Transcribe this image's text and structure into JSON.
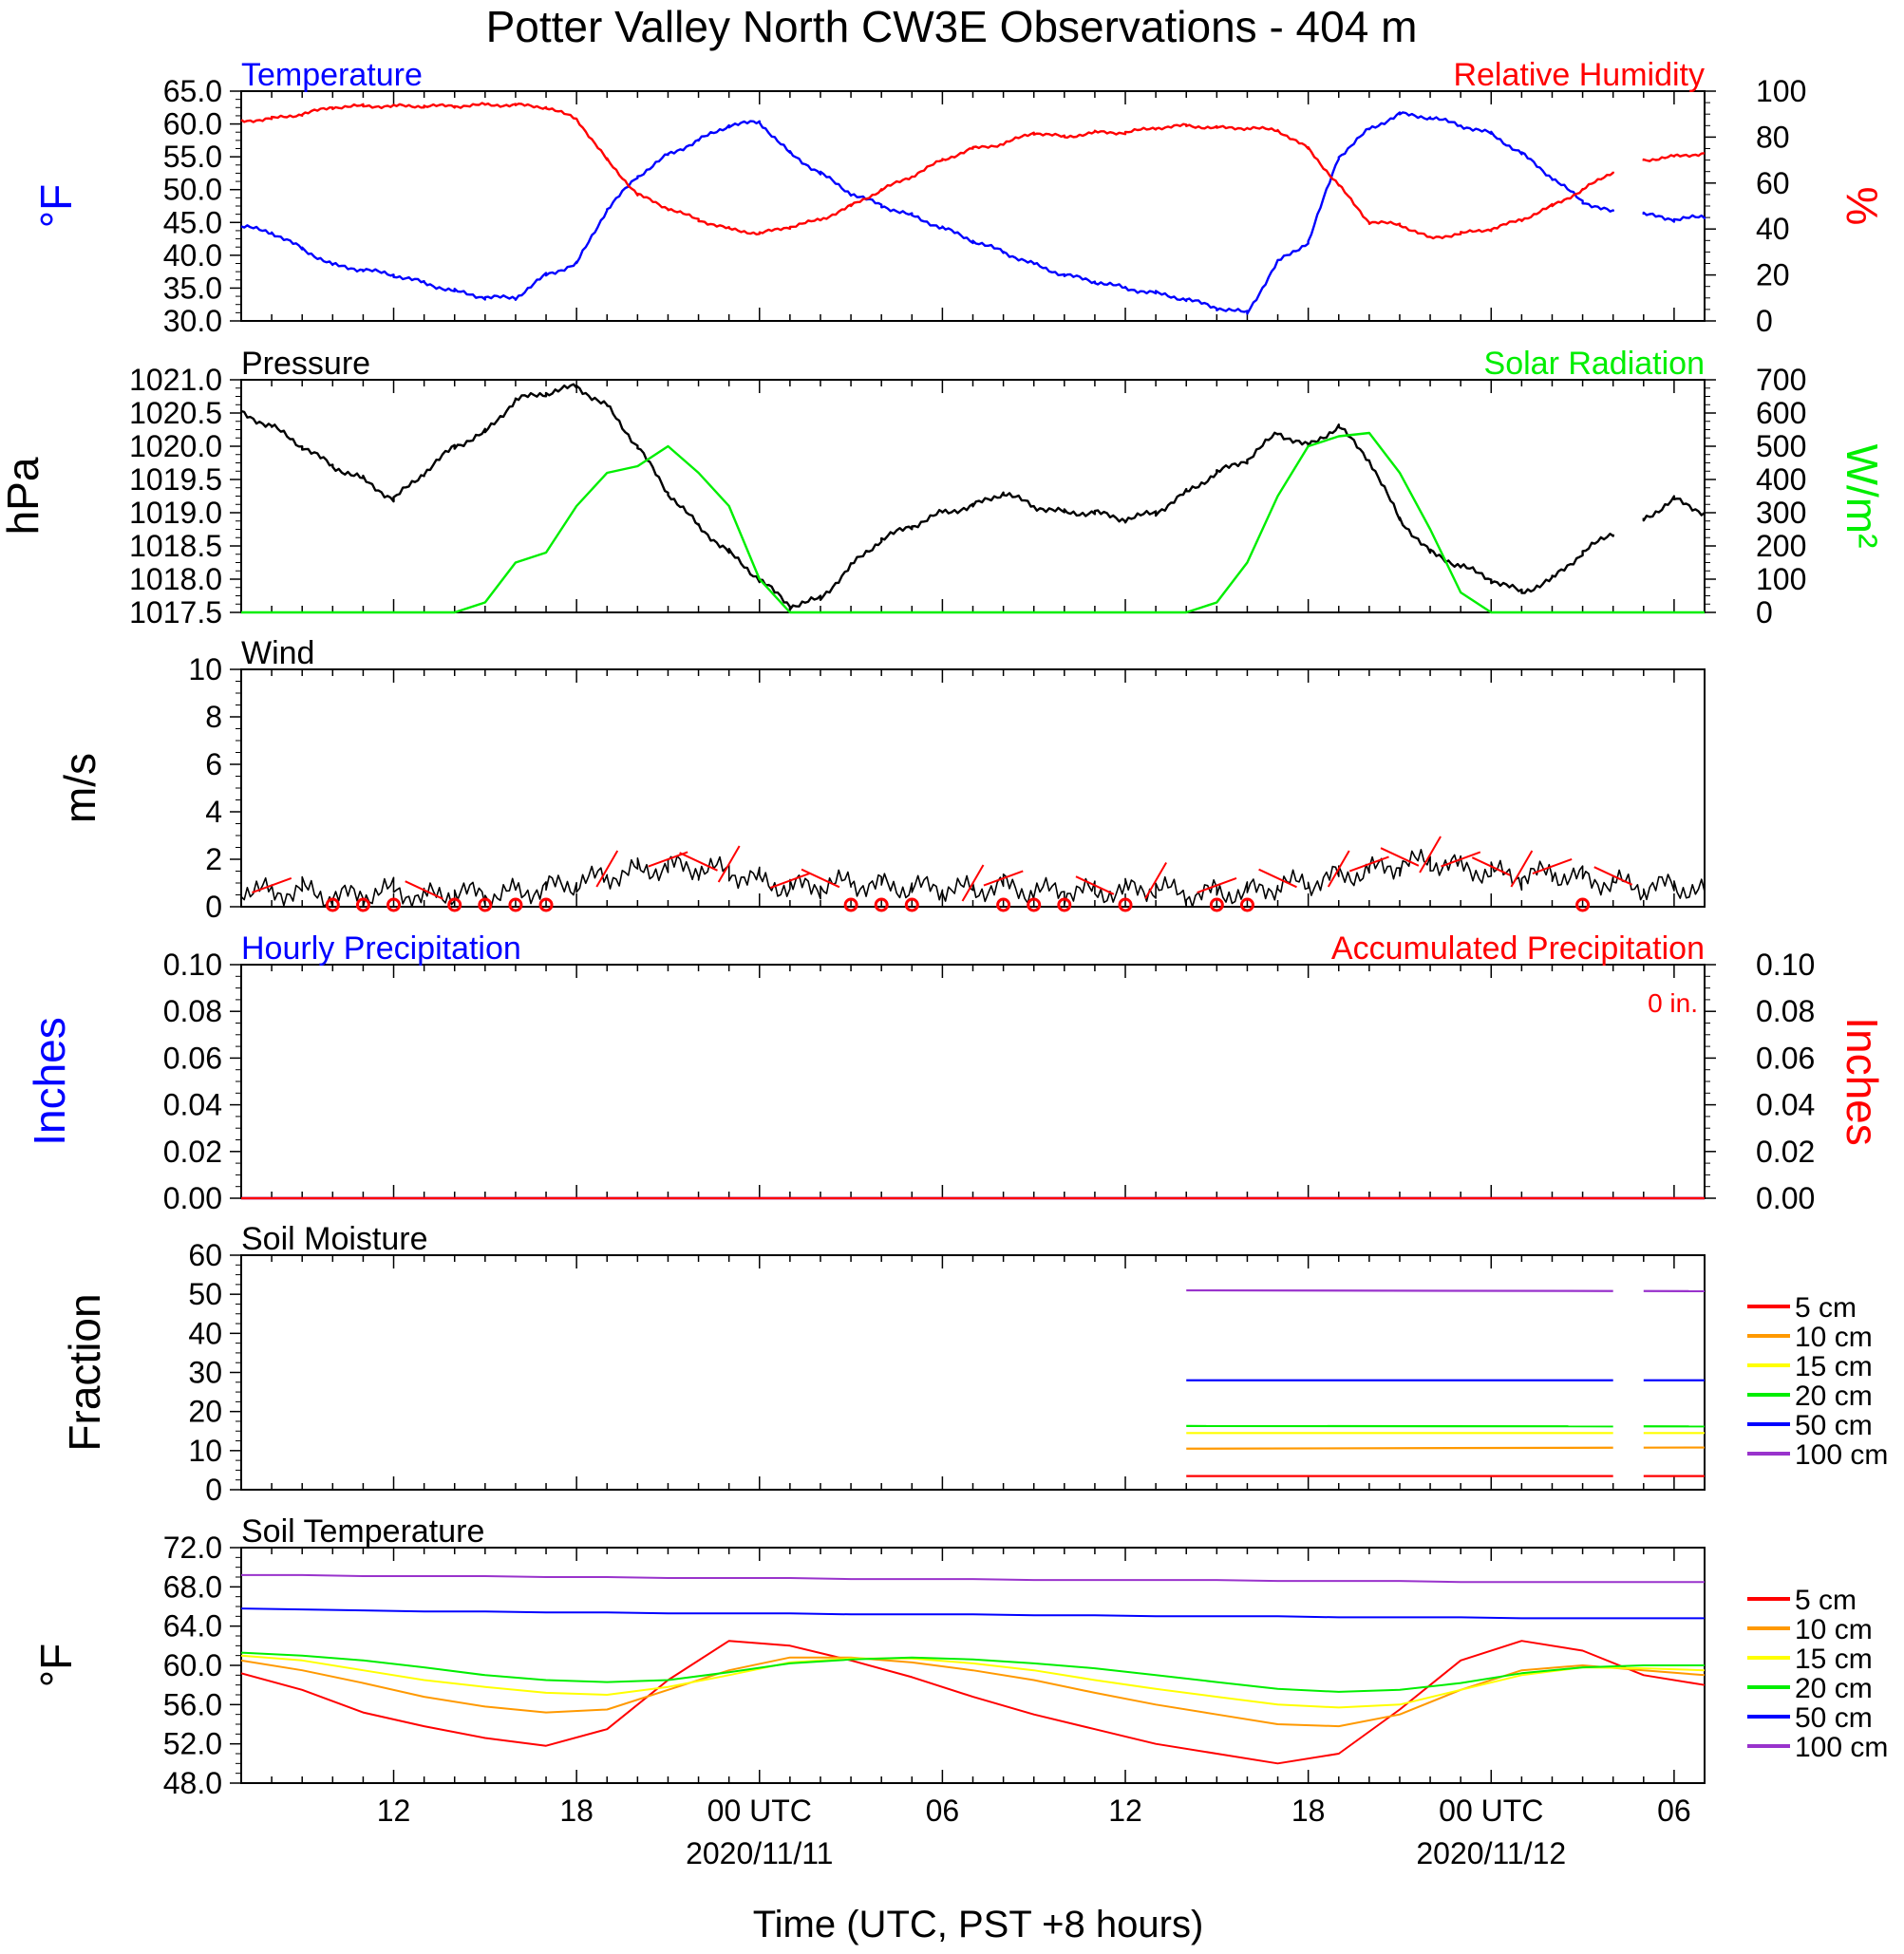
{
  "title": "Potter Valley North CW3E Observations - 404 m",
  "xlabel": "Time (UTC, PST +8 hours)",
  "x_axis": {
    "ticks": [
      {
        "hour": 12,
        "label": "12"
      },
      {
        "hour": 18,
        "label": "18"
      },
      {
        "hour": 24,
        "label": "00 UTC",
        "date": "2020/11/11"
      },
      {
        "hour": 30,
        "label": "06"
      },
      {
        "hour": 36,
        "label": "12"
      },
      {
        "hour": 42,
        "label": "18"
      },
      {
        "hour": 48,
        "label": "00 UTC",
        "date": "2020/11/12"
      },
      {
        "hour": 54,
        "label": "06"
      }
    ],
    "range_hours": [
      7,
      55
    ]
  },
  "chart_data": [
    {
      "type": "line",
      "left_title": "Temperature",
      "right_title": "Relative Humidity",
      "ylabel": "°F",
      "ylabel_right": "%",
      "ylim": [
        30,
        65
      ],
      "yticks": [
        "65.0",
        "60.0",
        "55.0",
        "50.0",
        "45.0",
        "40.0",
        "35.0",
        "30.0"
      ],
      "ylim_right": [
        0,
        100
      ],
      "yticks_right": [
        "100",
        "80",
        "60",
        "40",
        "20",
        "0"
      ],
      "colors": {
        "Temperature": "#0000ff",
        "Relative Humidity": "#ff0000"
      },
      "x_hours": [
        7,
        8,
        9,
        10,
        11,
        12,
        13,
        14,
        15,
        16,
        17,
        18,
        19,
        20,
        21,
        22,
        23,
        24,
        25,
        26,
        27,
        28,
        29,
        30,
        31,
        32,
        33,
        34,
        35,
        36,
        37,
        38,
        39,
        40,
        41,
        42,
        43,
        44,
        45,
        46,
        47,
        48,
        49,
        50,
        51,
        52,
        53,
        54,
        55
      ],
      "series": [
        {
          "name": "Temperature",
          "axis": "left",
          "gap_after_hour": 52,
          "values": [
            44.4,
            43.5,
            41,
            38.5,
            37.8,
            37,
            35.8,
            34.5,
            33.6,
            33.5,
            37,
            38.7,
            47,
            52,
            55.3,
            57.5,
            59.8,
            60.3,
            55.5,
            52.5,
            49.4,
            47.6,
            46,
            44.2,
            42.2,
            40.5,
            38.6,
            37,
            36,
            35,
            34.2,
            33.3,
            32,
            31.2,
            39,
            42,
            55,
            59.2,
            61.5,
            61,
            59.8,
            58.5,
            55.5,
            51.8,
            48.2,
            46.5,
            46.2,
            45.5,
            45.8
          ]
        },
        {
          "name": "Relative Humidity",
          "axis": "right",
          "gap_after_hour": 52,
          "values": [
            87,
            88,
            90,
            93,
            93.5,
            93.5,
            93.5,
            93.5,
            94,
            94,
            93,
            88,
            70,
            55,
            49,
            44,
            40,
            38,
            41,
            44,
            50,
            57,
            63,
            70,
            75,
            77,
            82,
            80,
            82,
            82,
            84,
            85,
            84,
            84,
            83,
            75,
            59,
            43,
            42,
            36,
            38,
            40,
            44,
            50,
            57,
            65,
            70,
            71.5,
            73
          ]
        }
      ]
    },
    {
      "type": "line",
      "left_title": "Pressure",
      "right_title": "Solar Radiation",
      "ylabel": "hPa",
      "ylabel_right": "W/m²",
      "ylim": [
        1017.5,
        1021.0
      ],
      "yticks": [
        "1021.0",
        "1020.5",
        "1020.0",
        "1019.5",
        "1019.0",
        "1018.5",
        "1018.0",
        "1017.5"
      ],
      "ylim_right": [
        0,
        700
      ],
      "yticks_right": [
        "700",
        "600",
        "500",
        "400",
        "300",
        "200",
        "100",
        "0"
      ],
      "colors": {
        "Pressure": "#000000",
        "Solar Radiation": "#00ee00"
      },
      "x_hours": [
        7,
        8,
        9,
        10,
        11,
        12,
        13,
        14,
        15,
        16,
        17,
        18,
        19,
        20,
        21,
        22,
        23,
        24,
        25,
        26,
        27,
        28,
        29,
        30,
        31,
        32,
        33,
        34,
        35,
        36,
        37,
        38,
        39,
        40,
        41,
        42,
        43,
        44,
        45,
        46,
        47,
        48,
        49,
        50,
        51,
        52,
        53,
        54,
        55
      ],
      "series": [
        {
          "name": "Pressure",
          "axis": "left",
          "gap_after_hour": 52,
          "values": [
            1020.5,
            1020.3,
            1020.0,
            1019.7,
            1019.5,
            1019.2,
            1019.6,
            1020.0,
            1020.2,
            1020.7,
            1020.8,
            1020.9,
            1020.6,
            1020.0,
            1019.3,
            1018.8,
            1018.4,
            1018.0,
            1017.6,
            1017.7,
            1018.2,
            1018.6,
            1018.8,
            1019.0,
            1019.1,
            1019.3,
            1019.1,
            1019.0,
            1019.0,
            1018.9,
            1019.0,
            1019.3,
            1019.6,
            1019.8,
            1020.2,
            1020.0,
            1020.3,
            1019.8,
            1018.9,
            1018.4,
            1018.2,
            1018.0,
            1017.8,
            1018.0,
            1018.4,
            1018.7,
            1018.9,
            1019.2,
            1019.0
          ]
        },
        {
          "name": "Solar Radiation",
          "axis": "right",
          "gap_after_hour": 52,
          "values": [
            0,
            0,
            0,
            0,
            0,
            0,
            0,
            0,
            30,
            150,
            180,
            320,
            420,
            440,
            500,
            420,
            320,
            100,
            0,
            0,
            0,
            0,
            0,
            0,
            0,
            0,
            0,
            0,
            0,
            0,
            0,
            0,
            30,
            150,
            350,
            500,
            530,
            540,
            420,
            250,
            60,
            0,
            0,
            0,
            0,
            0,
            0,
            0,
            0
          ]
        }
      ]
    },
    {
      "type": "line",
      "left_title": "Wind",
      "ylabel": "m/s",
      "ylim": [
        0,
        10
      ],
      "yticks": [
        "10",
        "8",
        "6",
        "4",
        "2",
        "0"
      ],
      "colors": {
        "wind": "#000000",
        "barbs": "#ff0000"
      },
      "x_hours": [
        7,
        8,
        9,
        10,
        11,
        12,
        13,
        14,
        15,
        16,
        17,
        18,
        19,
        20,
        21,
        22,
        23,
        24,
        25,
        26,
        27,
        28,
        29,
        30,
        31,
        32,
        33,
        34,
        35,
        36,
        37,
        38,
        39,
        40,
        41,
        42,
        43,
        44,
        45,
        46,
        47,
        48,
        49,
        50,
        51,
        52,
        53,
        54,
        55
      ],
      "series": [
        {
          "name": "Wind speed",
          "axis": "left",
          "values": [
            0.8,
            0.6,
            0.7,
            0.4,
            0.5,
            0.7,
            0.4,
            0.6,
            0.5,
            0.6,
            0.8,
            1.0,
            1.3,
            1.5,
            1.7,
            1.6,
            1.5,
            1.1,
            0.8,
            0.9,
            1.0,
            0.9,
            0.8,
            0.8,
            0.7,
            0.9,
            0.6,
            0.7,
            0.6,
            0.7,
            0.8,
            0.5,
            0.6,
            0.6,
            0.9,
            1.0,
            1.3,
            1.5,
            1.8,
            1.9,
            1.7,
            1.4,
            1.3,
            1.4,
            1.2,
            1.0,
            0.8,
            0.9,
            0.6
          ]
        }
      ],
      "calm_circle_hours": [
        10,
        11,
        12,
        14,
        15,
        16,
        17,
        27,
        28,
        29,
        32,
        33,
        34,
        36,
        39,
        40,
        51
      ]
    },
    {
      "type": "line",
      "left_title": "Hourly Precipitation",
      "right_title": "Accumulated Precipitation",
      "annotation": "0 in.",
      "ylabel": "Inches",
      "ylabel_right": "Inches",
      "ylim": [
        0,
        0.1
      ],
      "yticks": [
        "0.10",
        "0.08",
        "0.06",
        "0.04",
        "0.02",
        "0.00"
      ],
      "ylim_right": [
        0,
        0.1
      ],
      "yticks_right": [
        "0.10",
        "0.08",
        "0.06",
        "0.04",
        "0.02",
        "0.00"
      ],
      "colors": {
        "Hourly Precipitation": "#0000ff",
        "Accumulated Precipitation": "#ff0000"
      },
      "x_hours": [
        7,
        52,
        54,
        55
      ],
      "series": [
        {
          "name": "Hourly Precipitation",
          "axis": "left",
          "values": [
            0,
            0,
            0,
            0
          ]
        },
        {
          "name": "Accumulated Precipitation",
          "axis": "right",
          "values": [
            0,
            0,
            0,
            0
          ]
        }
      ]
    },
    {
      "type": "line",
      "left_title": "Soil Moisture",
      "ylabel": "Fraction",
      "ylim": [
        0,
        60
      ],
      "yticks": [
        "60",
        "50",
        "40",
        "30",
        "20",
        "10",
        "0"
      ],
      "x_range_hours": [
        38,
        55
      ],
      "gap_after_hour": 52,
      "series": [
        {
          "name": "5 cm",
          "color": "#ff0000",
          "values": [
            3.5,
            3.5
          ]
        },
        {
          "name": "10 cm",
          "color": "#ff9900",
          "values": [
            10.5,
            10.8
          ]
        },
        {
          "name": "15 cm",
          "color": "#ffff00",
          "values": [
            14.5,
            14.5
          ]
        },
        {
          "name": "20 cm",
          "color": "#00ee00",
          "values": [
            16.3,
            16.2
          ]
        },
        {
          "name": "50 cm",
          "color": "#0000ff",
          "values": [
            28.0,
            28.0
          ]
        },
        {
          "name": "100 cm",
          "color": "#9933cc",
          "values": [
            51.0,
            50.8
          ]
        }
      ]
    },
    {
      "type": "line",
      "left_title": "Soil Temperature",
      "ylabel": "°F",
      "ylim": [
        48,
        72
      ],
      "yticks": [
        "72.0",
        "68.0",
        "64.0",
        "60.0",
        "56.0",
        "52.0",
        "48.0"
      ],
      "x_hours": [
        7,
        9,
        11,
        13,
        15,
        17,
        19,
        21,
        23,
        25,
        27,
        29,
        31,
        33,
        35,
        37,
        39,
        41,
        43,
        45,
        47,
        49,
        51,
        53,
        55
      ],
      "gap_after_hour": 52,
      "series": [
        {
          "name": "5 cm",
          "color": "#ff0000",
          "values": [
            59.2,
            57.5,
            55.2,
            53.8,
            52.6,
            51.8,
            53.5,
            58.5,
            62.5,
            62.0,
            60.5,
            58.8,
            56.8,
            55.0,
            53.5,
            52.0,
            51.0,
            50.0,
            51.0,
            55.5,
            60.5,
            62.5,
            61.5,
            59.0,
            58.0
          ]
        },
        {
          "name": "10 cm",
          "color": "#ff9900",
          "values": [
            60.5,
            59.5,
            58.2,
            56.8,
            55.8,
            55.2,
            55.5,
            57.5,
            59.5,
            60.8,
            60.8,
            60.3,
            59.5,
            58.5,
            57.2,
            56.0,
            55.0,
            54.0,
            53.8,
            55.0,
            57.5,
            59.5,
            60.0,
            59.5,
            59.0
          ]
        },
        {
          "name": "15 cm",
          "color": "#ffff00",
          "values": [
            61.0,
            60.5,
            59.5,
            58.5,
            57.8,
            57.2,
            57.0,
            57.8,
            59.0,
            60.3,
            60.7,
            60.7,
            60.2,
            59.5,
            58.5,
            57.6,
            56.8,
            56.0,
            55.7,
            56.0,
            57.5,
            59.0,
            59.8,
            59.7,
            59.5
          ]
        },
        {
          "name": "20 cm",
          "color": "#00ee00",
          "values": [
            61.3,
            61.0,
            60.5,
            59.8,
            59.0,
            58.5,
            58.3,
            58.5,
            59.3,
            60.2,
            60.6,
            60.8,
            60.6,
            60.2,
            59.7,
            59.0,
            58.3,
            57.6,
            57.3,
            57.5,
            58.2,
            59.2,
            59.8,
            60.0,
            60.0
          ]
        },
        {
          "name": "50 cm",
          "color": "#0000ff",
          "values": [
            65.8,
            65.7,
            65.6,
            65.5,
            65.5,
            65.4,
            65.4,
            65.3,
            65.3,
            65.3,
            65.2,
            65.2,
            65.2,
            65.1,
            65.1,
            65.0,
            65.0,
            65.0,
            64.9,
            64.9,
            64.9,
            64.8,
            64.8,
            64.8,
            64.8
          ]
        },
        {
          "name": "100 cm",
          "color": "#9933cc",
          "values": [
            69.2,
            69.2,
            69.1,
            69.1,
            69.1,
            69.0,
            69.0,
            68.9,
            68.9,
            68.9,
            68.8,
            68.8,
            68.8,
            68.7,
            68.7,
            68.7,
            68.7,
            68.6,
            68.6,
            68.6,
            68.5,
            68.5,
            68.5,
            68.5,
            68.5
          ]
        }
      ]
    }
  ]
}
